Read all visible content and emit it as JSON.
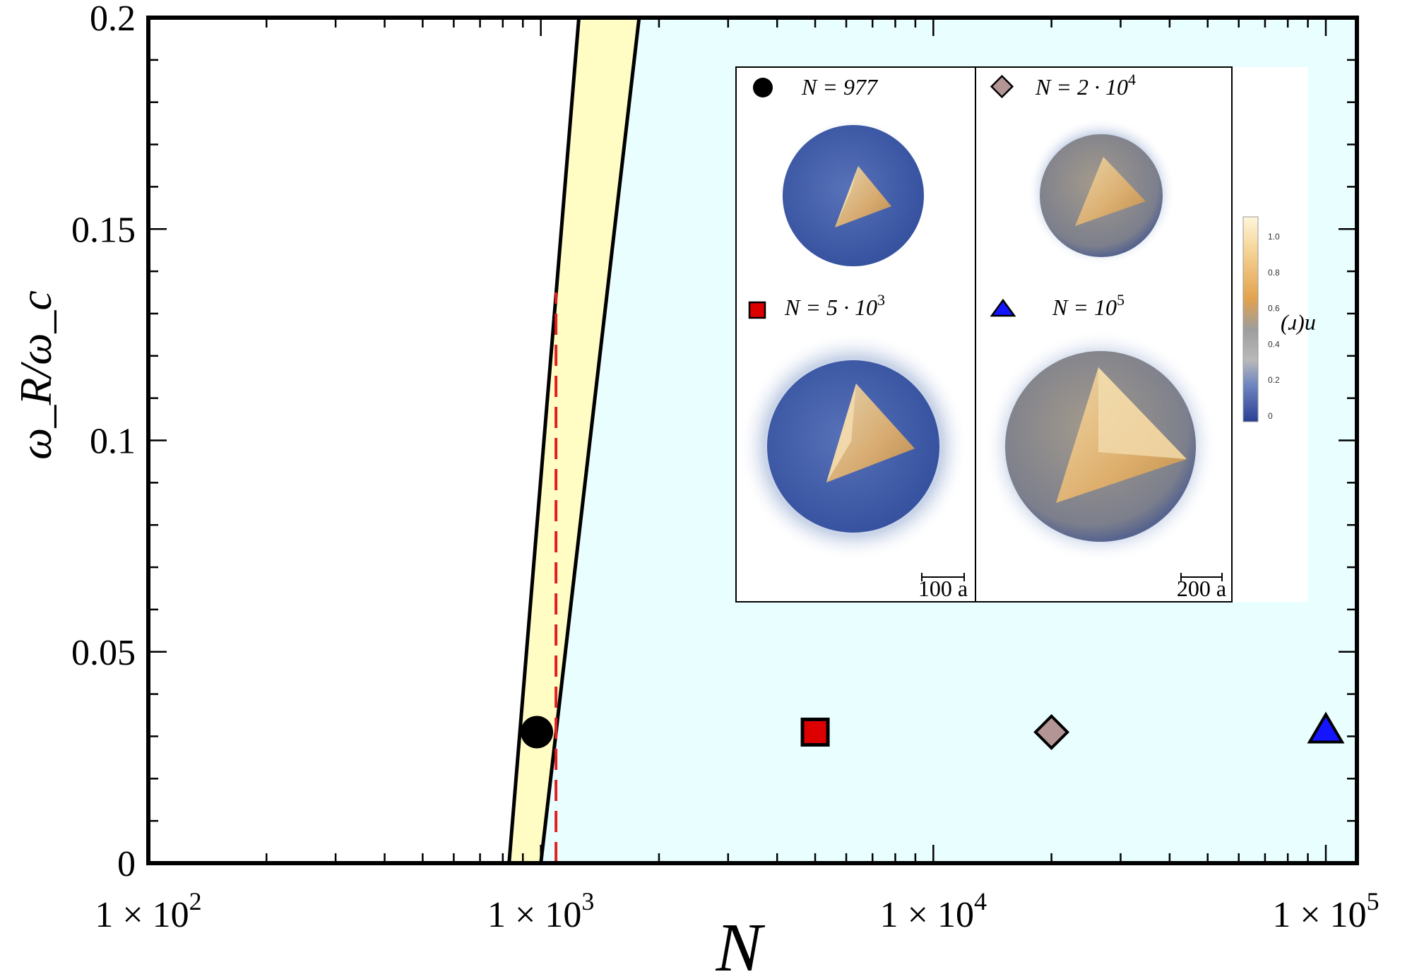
{
  "chart_data": {
    "type": "scatter",
    "xlabel": "N",
    "ylabel": "ω_R/ω_c",
    "xscale": "log",
    "xlim": [
      100,
      120000
    ],
    "ylim": [
      0,
      0.2
    ],
    "x_ticks": [
      100,
      1000,
      10000,
      100000
    ],
    "x_tick_labels": [
      {
        "base": "1 × 10",
        "exp": "2"
      },
      {
        "base": "1 × 10",
        "exp": "3"
      },
      {
        "base": "1 × 10",
        "exp": "4"
      },
      {
        "base": "1 × 10",
        "exp": "5"
      }
    ],
    "y_ticks": [
      0,
      0.05,
      0.1,
      0.15,
      0.2
    ],
    "y_tick_labels": [
      "0",
      "0.05",
      "0.1",
      "0.15",
      "0.2"
    ],
    "regions": [
      {
        "name": "transition band",
        "color": "#fffcc4",
        "left_boundary": [
          [
            830,
            0
          ],
          [
            1250,
            0.2
          ]
        ],
        "right_boundary": [
          [
            1000,
            0
          ],
          [
            1780,
            0.2
          ]
        ]
      },
      {
        "name": "right phase",
        "color": "#e8feff"
      }
    ],
    "dashed_line": {
      "x": 1093,
      "y_range": [
        0,
        0.135
      ],
      "color": "#e02020"
    },
    "series": [
      {
        "name": "N = 977",
        "marker": "circle",
        "color": "#000000",
        "x": 977,
        "y": 0.031
      },
      {
        "name": "N = 5·10^3",
        "marker": "square",
        "color": "#dd0000",
        "x": 5000,
        "y": 0.031
      },
      {
        "name": "N = 2·10^4",
        "marker": "diamond",
        "color": "#b39595",
        "x": 20000,
        "y": 0.031
      },
      {
        "name": "N = 10^5",
        "marker": "triangle",
        "color": "#1414ff",
        "x": 100000,
        "y": 0.031
      }
    ],
    "inset": {
      "panels": [
        {
          "label": "N = 977",
          "marker": "circle"
        },
        {
          "label": "N = 2 · 10",
          "exp": "4",
          "marker": "diamond"
        },
        {
          "label": "N = 5 · 10",
          "exp": "3",
          "marker": "square"
        },
        {
          "label": "N = 10",
          "exp": "5",
          "marker": "triangle"
        }
      ],
      "scale_bars": [
        "100 a",
        "200 a"
      ],
      "colorbar": {
        "label": "n(r)",
        "ticks": [
          "0",
          "0.2",
          "0.4",
          "0.6",
          "0.8",
          "1.0"
        ]
      }
    }
  }
}
